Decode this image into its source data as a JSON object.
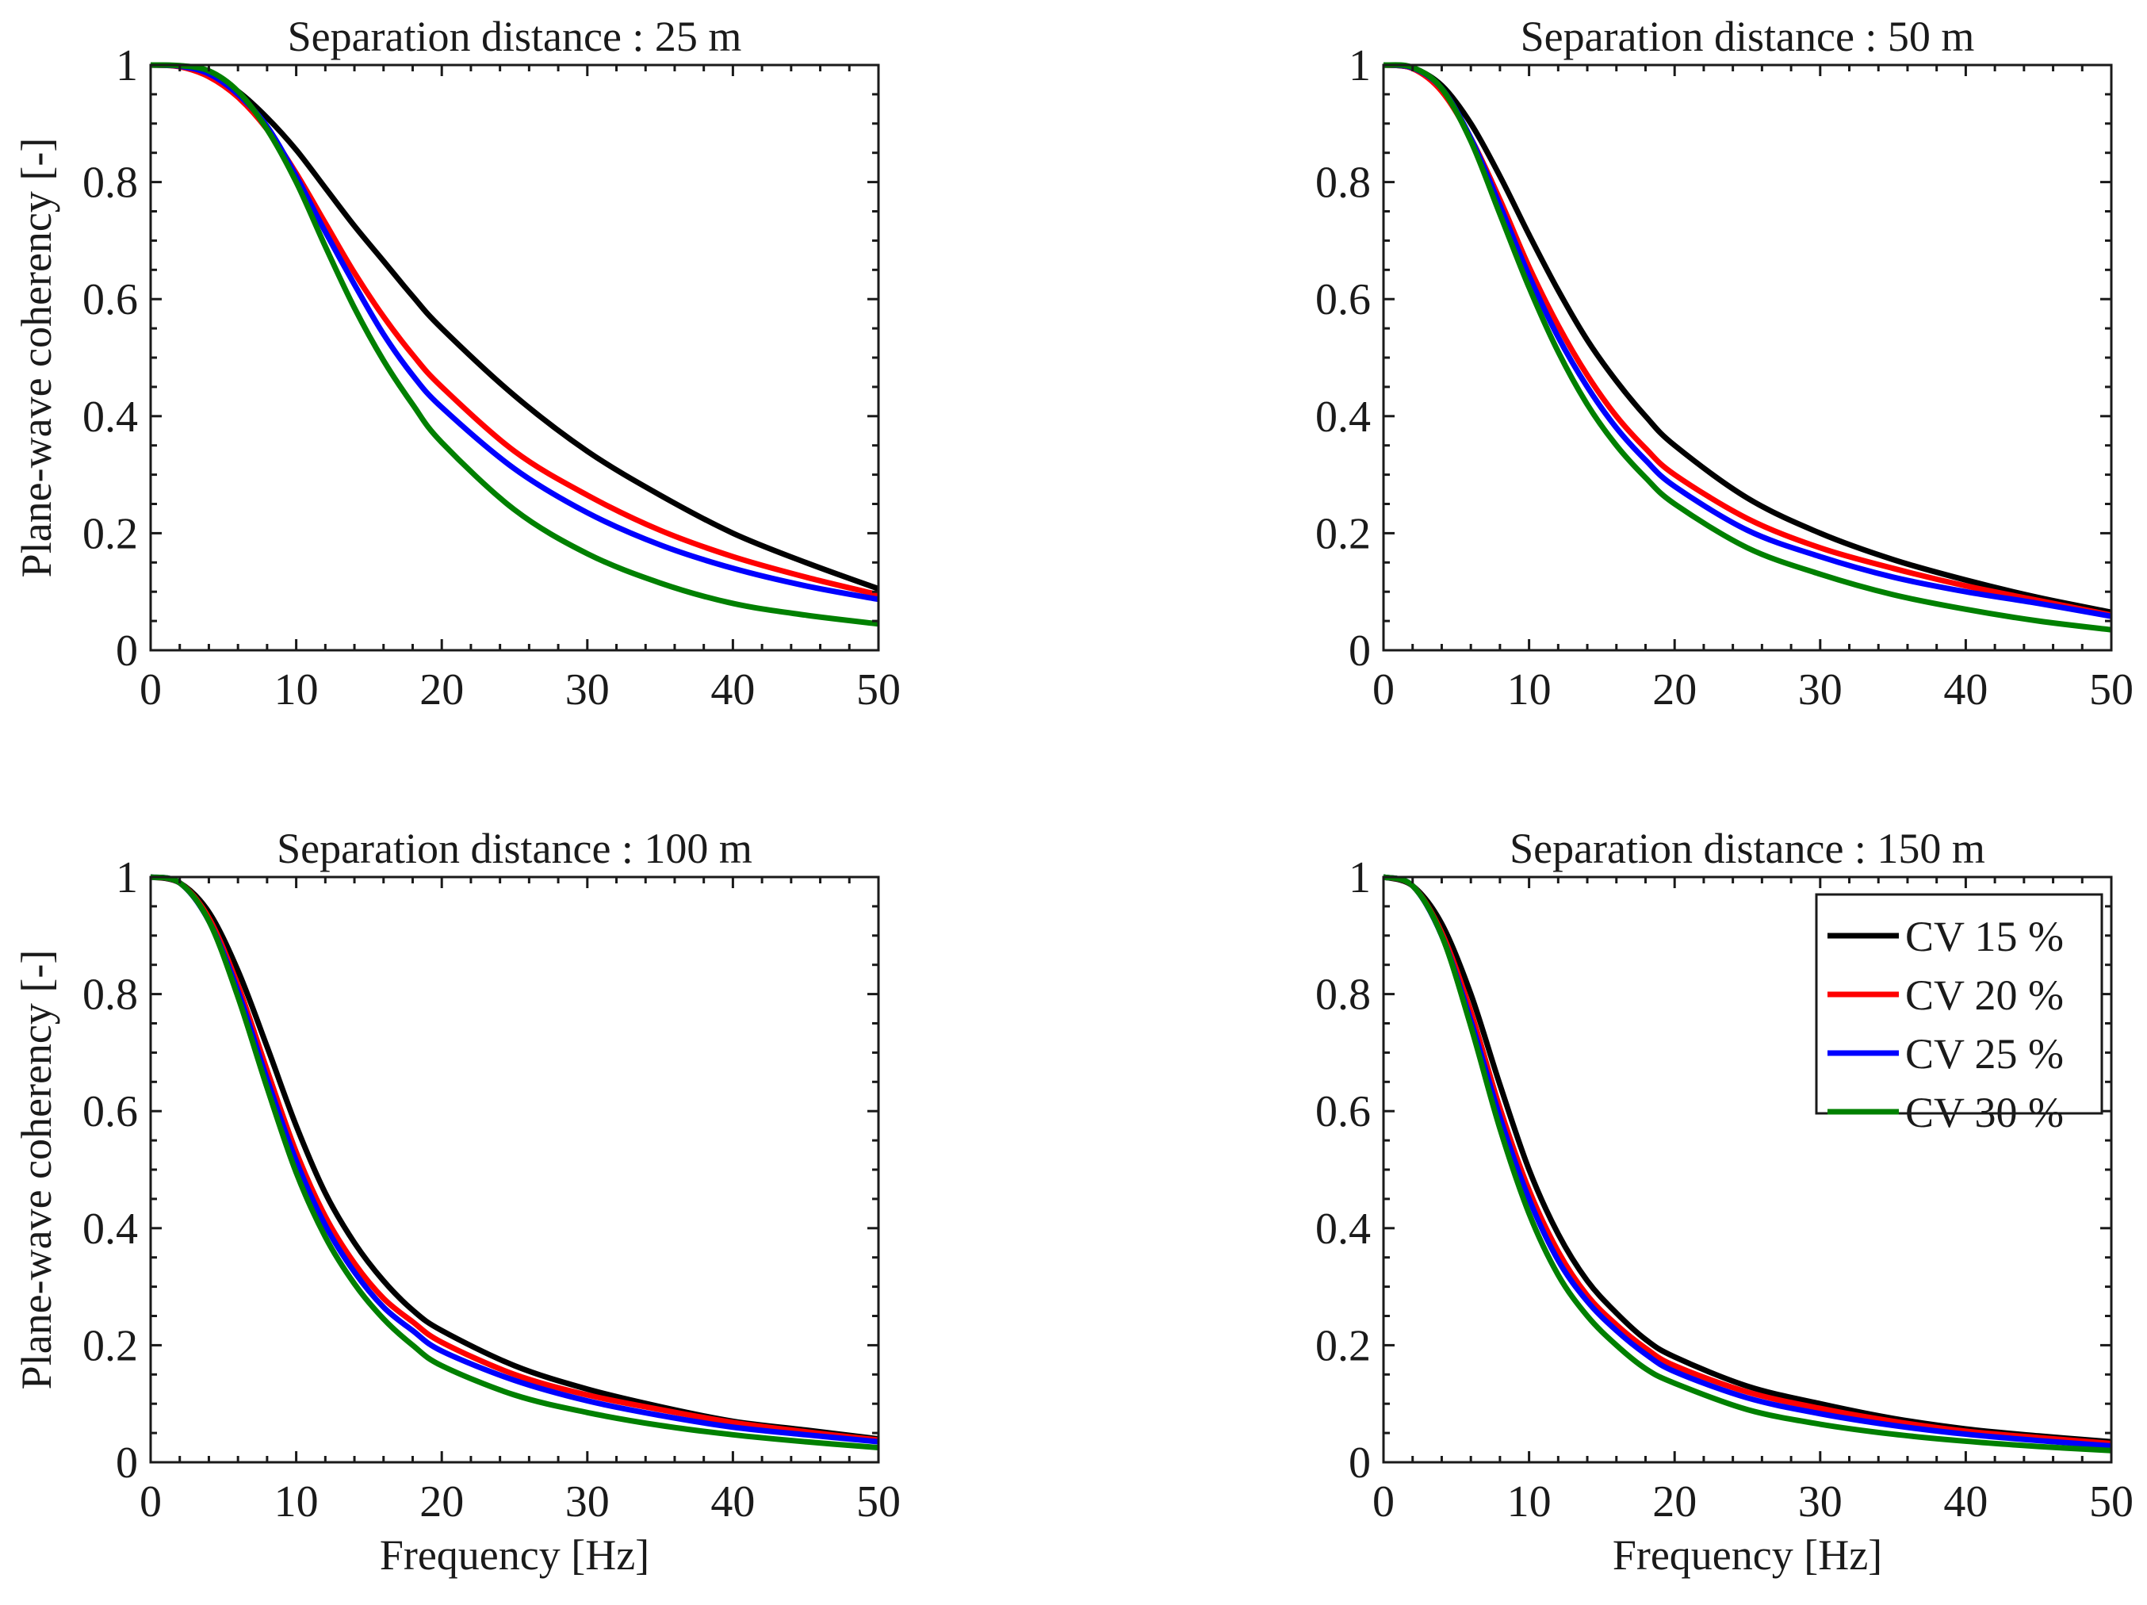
{
  "figure": {
    "series_names": [
      "CV 15 %",
      "CV 20 %",
      "CV 25 %",
      "CV 30 %"
    ],
    "series_colors": [
      "#000000",
      "#ff0000",
      "#0000ff",
      "#008000"
    ],
    "xlabel": "Frequency [Hz]",
    "ylabel": "Plane-wave coherency [-]"
  },
  "chart_data": [
    {
      "type": "line",
      "title": "Separation distance : 25 m",
      "xlabel": "",
      "ylabel": "Plane-wave coherency [-]",
      "xlim": [
        0,
        50
      ],
      "ylim": [
        0,
        1
      ],
      "xticks": [
        0,
        10,
        20,
        30,
        40,
        50
      ],
      "xtick_labels": [
        "0",
        "10",
        "20",
        "30",
        "40",
        "50"
      ],
      "yticks": [
        0,
        0.2,
        0.4,
        0.6,
        0.8,
        1
      ],
      "ytick_labels": [
        "0",
        "0.2",
        "0.4",
        "0.6",
        "0.8",
        "1"
      ],
      "grid": false,
      "legend": null,
      "x": [
        0,
        2,
        4,
        6,
        8,
        10,
        12,
        14,
        16,
        18,
        20,
        25,
        30,
        35,
        40,
        45,
        50
      ],
      "series": [
        {
          "name": "CV 15 %",
          "color": "#000000",
          "values": [
            1.0,
            0.998,
            0.985,
            0.955,
            0.91,
            0.855,
            0.79,
            0.725,
            0.665,
            0.605,
            0.55,
            0.435,
            0.34,
            0.265,
            0.2,
            0.15,
            0.105
          ]
        },
        {
          "name": "CV 20 %",
          "color": "#ff0000",
          "values": [
            1.0,
            0.997,
            0.98,
            0.945,
            0.89,
            0.815,
            0.73,
            0.645,
            0.57,
            0.505,
            0.45,
            0.34,
            0.265,
            0.205,
            0.16,
            0.125,
            0.095
          ]
        },
        {
          "name": "CV 25 %",
          "color": "#0000ff",
          "values": [
            1.0,
            0.998,
            0.985,
            0.95,
            0.895,
            0.81,
            0.715,
            0.625,
            0.54,
            0.47,
            0.415,
            0.31,
            0.235,
            0.18,
            0.14,
            0.11,
            0.087
          ]
        },
        {
          "name": "CV 30 %",
          "color": "#008000",
          "values": [
            1.0,
            0.999,
            0.99,
            0.955,
            0.89,
            0.8,
            0.69,
            0.585,
            0.495,
            0.42,
            0.355,
            0.24,
            0.165,
            0.115,
            0.08,
            0.06,
            0.045
          ]
        }
      ]
    },
    {
      "type": "line",
      "title": "Separation distance : 50 m",
      "xlabel": "",
      "ylabel": "",
      "xlim": [
        0,
        50
      ],
      "ylim": [
        0,
        1
      ],
      "xticks": [
        0,
        10,
        20,
        30,
        40,
        50
      ],
      "xtick_labels": [
        "0",
        "10",
        "20",
        "30",
        "40",
        "50"
      ],
      "yticks": [
        0,
        0.2,
        0.4,
        0.6,
        0.8,
        1
      ],
      "ytick_labels": [
        "0",
        "0.2",
        "0.4",
        "0.6",
        "0.8",
        "1"
      ],
      "grid": false,
      "legend": null,
      "x": [
        0,
        2,
        4,
        6,
        8,
        10,
        12,
        14,
        16,
        18,
        20,
        25,
        30,
        35,
        40,
        45,
        50
      ],
      "series": [
        {
          "name": "CV 15 %",
          "color": "#000000",
          "values": [
            1.0,
            0.995,
            0.965,
            0.9,
            0.81,
            0.71,
            0.615,
            0.53,
            0.46,
            0.4,
            0.35,
            0.26,
            0.2,
            0.155,
            0.12,
            0.09,
            0.065
          ]
        },
        {
          "name": "CV 20 %",
          "color": "#ff0000",
          "values": [
            1.0,
            0.994,
            0.955,
            0.875,
            0.77,
            0.655,
            0.555,
            0.47,
            0.4,
            0.345,
            0.3,
            0.225,
            0.175,
            0.14,
            0.11,
            0.085,
            0.06
          ]
        },
        {
          "name": "CV 25 %",
          "color": "#0000ff",
          "values": [
            1.0,
            0.995,
            0.96,
            0.875,
            0.76,
            0.64,
            0.535,
            0.45,
            0.38,
            0.325,
            0.28,
            0.205,
            0.16,
            0.125,
            0.1,
            0.08,
            0.058
          ]
        },
        {
          "name": "CV 30 %",
          "color": "#008000",
          "values": [
            1.0,
            0.996,
            0.96,
            0.87,
            0.745,
            0.62,
            0.51,
            0.42,
            0.35,
            0.295,
            0.25,
            0.175,
            0.13,
            0.095,
            0.07,
            0.05,
            0.035
          ]
        }
      ]
    },
    {
      "type": "line",
      "title": "Separation distance : 100 m",
      "xlabel": "Frequency [Hz]",
      "ylabel": "Plane-wave coherency [-]",
      "xlim": [
        0,
        50
      ],
      "ylim": [
        0,
        1
      ],
      "xticks": [
        0,
        10,
        20,
        30,
        40,
        50
      ],
      "xtick_labels": [
        "0",
        "10",
        "20",
        "30",
        "40",
        "50"
      ],
      "yticks": [
        0,
        0.2,
        0.4,
        0.6,
        0.8,
        1
      ],
      "ytick_labels": [
        "0",
        "0.2",
        "0.4",
        "0.6",
        "0.8",
        "1"
      ],
      "grid": false,
      "legend": null,
      "x": [
        0,
        2,
        4,
        6,
        8,
        10,
        12,
        14,
        16,
        18,
        20,
        25,
        30,
        35,
        40,
        45,
        50
      ],
      "series": [
        {
          "name": "CV 15 %",
          "color": "#000000",
          "values": [
            1.0,
            0.99,
            0.94,
            0.84,
            0.71,
            0.575,
            0.46,
            0.375,
            0.31,
            0.26,
            0.225,
            0.165,
            0.125,
            0.095,
            0.07,
            0.055,
            0.04
          ]
        },
        {
          "name": "CV 20 %",
          "color": "#ff0000",
          "values": [
            1.0,
            0.99,
            0.93,
            0.815,
            0.67,
            0.53,
            0.42,
            0.34,
            0.28,
            0.24,
            0.205,
            0.15,
            0.115,
            0.09,
            0.068,
            0.052,
            0.038
          ]
        },
        {
          "name": "CV 25 %",
          "color": "#0000ff",
          "values": [
            1.0,
            0.99,
            0.925,
            0.805,
            0.655,
            0.515,
            0.405,
            0.325,
            0.265,
            0.225,
            0.19,
            0.14,
            0.105,
            0.08,
            0.06,
            0.047,
            0.035
          ]
        },
        {
          "name": "CV 30 %",
          "color": "#008000",
          "values": [
            1.0,
            0.99,
            0.925,
            0.795,
            0.64,
            0.495,
            0.385,
            0.305,
            0.245,
            0.2,
            0.165,
            0.115,
            0.085,
            0.063,
            0.047,
            0.035,
            0.025
          ]
        }
      ]
    },
    {
      "type": "line",
      "title": "Separation distance : 150 m",
      "xlabel": "Frequency [Hz]",
      "ylabel": "",
      "xlim": [
        0,
        50
      ],
      "ylim": [
        0,
        1
      ],
      "xticks": [
        0,
        10,
        20,
        30,
        40,
        50
      ],
      "xtick_labels": [
        "0",
        "10",
        "20",
        "30",
        "40",
        "50"
      ],
      "yticks": [
        0,
        0.2,
        0.4,
        0.6,
        0.8,
        1
      ],
      "ytick_labels": [
        "0",
        "0.2",
        "0.4",
        "0.6",
        "0.8",
        "1"
      ],
      "grid": false,
      "legend": "top-right",
      "x": [
        0,
        2,
        4,
        6,
        8,
        10,
        12,
        14,
        16,
        18,
        20,
        25,
        30,
        35,
        40,
        45,
        50
      ],
      "series": [
        {
          "name": "CV 15 %",
          "color": "#000000",
          "values": [
            1.0,
            0.985,
            0.92,
            0.8,
            0.645,
            0.5,
            0.39,
            0.31,
            0.255,
            0.21,
            0.18,
            0.13,
            0.1,
            0.075,
            0.057,
            0.045,
            0.035
          ]
        },
        {
          "name": "CV 20 %",
          "color": "#ff0000",
          "values": [
            1.0,
            0.985,
            0.905,
            0.77,
            0.605,
            0.465,
            0.36,
            0.285,
            0.235,
            0.195,
            0.165,
            0.12,
            0.092,
            0.07,
            0.053,
            0.042,
            0.032
          ]
        },
        {
          "name": "CV 25 %",
          "color": "#0000ff",
          "values": [
            1.0,
            0.985,
            0.9,
            0.755,
            0.59,
            0.45,
            0.345,
            0.275,
            0.225,
            0.185,
            0.155,
            0.11,
            0.083,
            0.063,
            0.048,
            0.037,
            0.028
          ]
        },
        {
          "name": "CV 30 %",
          "color": "#008000",
          "values": [
            1.0,
            0.985,
            0.9,
            0.745,
            0.57,
            0.425,
            0.32,
            0.25,
            0.2,
            0.16,
            0.135,
            0.09,
            0.065,
            0.048,
            0.036,
            0.027,
            0.02
          ]
        }
      ]
    }
  ]
}
